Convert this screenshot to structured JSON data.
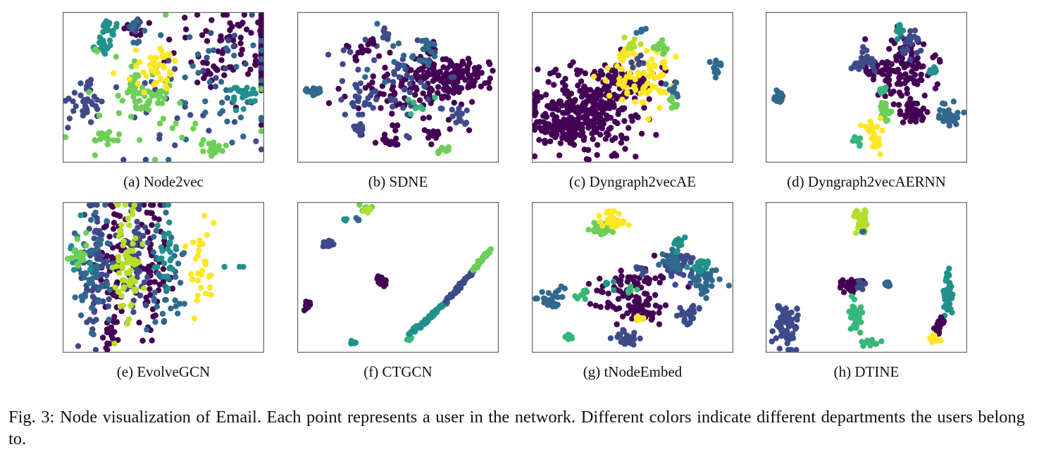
{
  "colors": {
    "purple": "#440154",
    "blue": "#3e4a89",
    "teal": "#31688e",
    "cyan": "#21918c",
    "green": "#35b779",
    "light_green": "#6ece58",
    "yellow_green": "#b5de2b",
    "yellow": "#fde725"
  },
  "panels": [
    {
      "id": "a",
      "label": "(a)",
      "title": "Node2vec"
    },
    {
      "id": "b",
      "label": "(b)",
      "title": "SDNE"
    },
    {
      "id": "c",
      "label": "(c)",
      "title": "Dyngraph2vecAE"
    },
    {
      "id": "d",
      "label": "(d)",
      "title": "Dyngraph2vecAERNN"
    },
    {
      "id": "e",
      "label": "(e)",
      "title": "EvolveGCN"
    },
    {
      "id": "f",
      "label": "(f)",
      "title": "CTGCN"
    },
    {
      "id": "g",
      "label": "(g)",
      "title": "tNodeEmbed"
    },
    {
      "id": "h",
      "label": "(h)",
      "title": "DTINE"
    }
  ],
  "caption": {
    "label": "Fig. 3:",
    "text": "Node visualization of Email. Each point represents a user in the network. Different colors indicate different departments the users belong to."
  }
}
